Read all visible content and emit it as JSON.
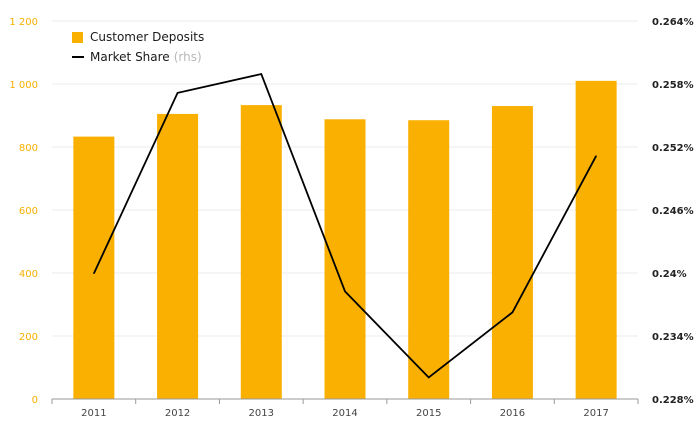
{
  "chart_data": {
    "type": "bar",
    "categories": [
      "2011",
      "2012",
      "2013",
      "2014",
      "2015",
      "2016",
      "2017"
    ],
    "series": [
      {
        "name": "Customer Deposits",
        "type": "bar",
        "axis": "left",
        "color": "#F9B000",
        "values": [
          833,
          905,
          933,
          888,
          885,
          930,
          1010
        ]
      },
      {
        "name": "Market Share",
        "type": "line",
        "axis": "right",
        "color": "#000000",
        "values": [
          0.23995,
          0.25715,
          0.25895,
          0.23825,
          0.23005,
          0.23625,
          0.25115
        ]
      }
    ],
    "legend_note": "(rhs)",
    "y_left": {
      "min": 0,
      "max": 1200,
      "ticks": [
        "0",
        "200",
        "400",
        "600",
        "800",
        "1 000",
        "1 200"
      ],
      "tick_values": [
        0,
        200,
        400,
        600,
        800,
        1000,
        1200
      ],
      "tick_color": "#F9B000"
    },
    "y_right": {
      "min": 0.228,
      "max": 0.264,
      "ticks": [
        "0.228%",
        "0.234%",
        "0.24%",
        "0.246%",
        "0.252%",
        "0.258%",
        "0.264%"
      ],
      "tick_values": [
        0.228,
        0.234,
        0.24,
        0.246,
        0.252,
        0.258,
        0.264
      ]
    },
    "grid": true,
    "legend_position": "top-left",
    "title": "",
    "xlabel": "",
    "ylabel": ""
  }
}
